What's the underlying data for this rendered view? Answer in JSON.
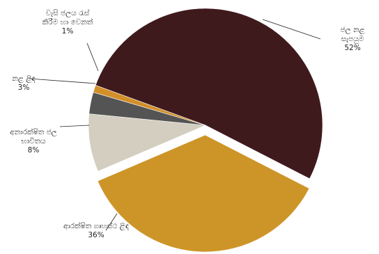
{
  "chart_data": {
    "type": "pie",
    "slices": [
      {
        "label": "ජල නළ සැපයුම",
        "label_lines": [
          "ජල නළ",
          "සැපයුම"
        ],
        "value": 52,
        "value_text": "52%",
        "color": "#3f1a1d",
        "exploded": false
      },
      {
        "label": "ආරක්ෂිත ගෘහස්ථ ළිඳ",
        "label_lines": [
          "ආරක්ෂිත ගෘහස්ථ ළිඳ"
        ],
        "value": 36,
        "value_text": "36%",
        "color": "#cd9528",
        "exploded": true
      },
      {
        "label": "අනාරක්ෂිත ජල භාවිතය",
        "label_lines": [
          "අනාරක්ෂිත ජල",
          "භාවිතය"
        ],
        "value": 8,
        "value_text": "8%",
        "color": "#d3cebf",
        "exploded": false
      },
      {
        "label": "නළ ළිඳ",
        "label_lines": [
          "නළ ළිඳ"
        ],
        "value": 3,
        "value_text": "3%",
        "color": "#545454",
        "exploded": false
      },
      {
        "label": "වැසි ජලය රැස් කිරීම හා වෙනත්",
        "label_lines": [
          "වැසි ජලය රැස්",
          "කිරීම හා වෙනත්"
        ],
        "value": 1,
        "value_text": "1%",
        "color": "#d28f2a",
        "exploded": false
      }
    ]
  }
}
